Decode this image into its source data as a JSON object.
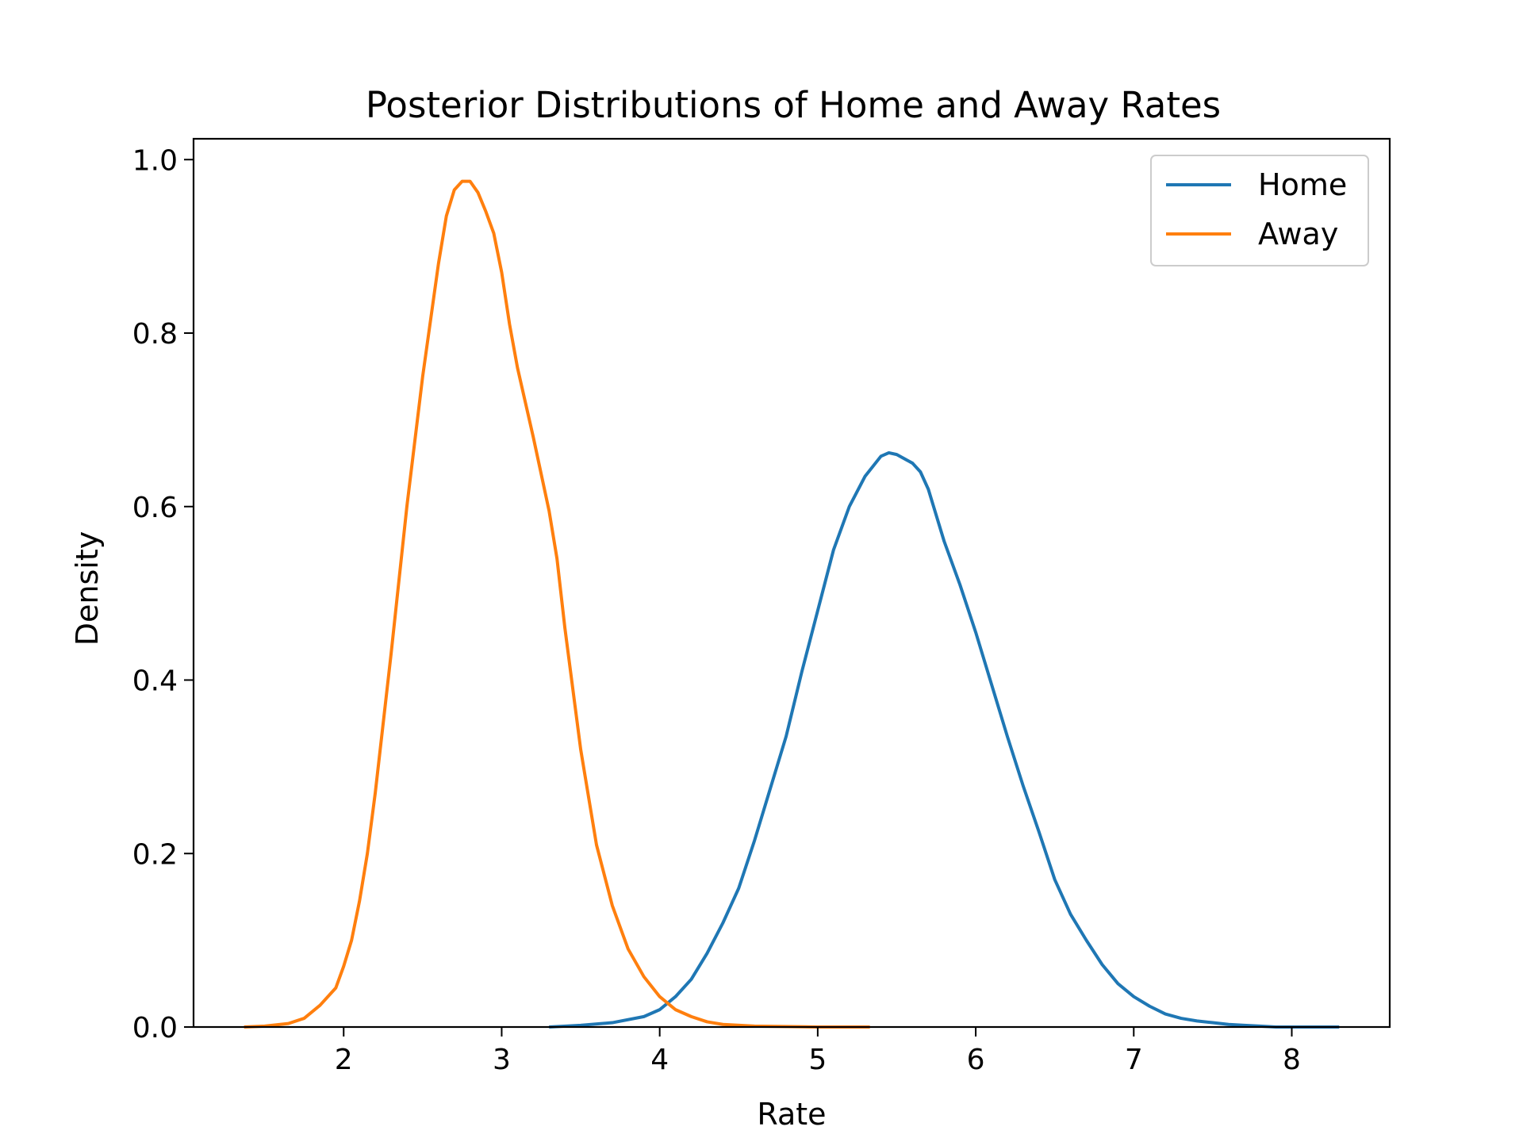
{
  "chart_data": {
    "type": "line",
    "title": "Posterior Distributions of Home and Away Rates",
    "xlabel": "Rate",
    "ylabel": "Density",
    "xlim": [
      1.05,
      8.62
    ],
    "ylim": [
      0.0,
      1.024
    ],
    "x_ticks": [
      "2",
      "3",
      "4",
      "5",
      "6",
      "7",
      "8"
    ],
    "y_ticks": [
      "0.0",
      "0.2",
      "0.4",
      "0.6",
      "0.8",
      "1.0"
    ],
    "grid": false,
    "legend_position": "top-right",
    "series": [
      {
        "name": "Home",
        "color": "#1f77b4",
        "points": [
          [
            3.3,
            0.0
          ],
          [
            3.5,
            0.002
          ],
          [
            3.7,
            0.005
          ],
          [
            3.9,
            0.012
          ],
          [
            4.0,
            0.02
          ],
          [
            4.1,
            0.035
          ],
          [
            4.2,
            0.055
          ],
          [
            4.3,
            0.085
          ],
          [
            4.4,
            0.12
          ],
          [
            4.5,
            0.16
          ],
          [
            4.6,
            0.215
          ],
          [
            4.7,
            0.275
          ],
          [
            4.8,
            0.335
          ],
          [
            4.9,
            0.41
          ],
          [
            5.0,
            0.48
          ],
          [
            5.1,
            0.55
          ],
          [
            5.2,
            0.6
          ],
          [
            5.3,
            0.635
          ],
          [
            5.4,
            0.658
          ],
          [
            5.45,
            0.662
          ],
          [
            5.5,
            0.66
          ],
          [
            5.6,
            0.65
          ],
          [
            5.65,
            0.64
          ],
          [
            5.7,
            0.62
          ],
          [
            5.8,
            0.56
          ],
          [
            5.9,
            0.51
          ],
          [
            6.0,
            0.455
          ],
          [
            6.1,
            0.395
          ],
          [
            6.2,
            0.335
          ],
          [
            6.3,
            0.278
          ],
          [
            6.4,
            0.225
          ],
          [
            6.5,
            0.17
          ],
          [
            6.6,
            0.13
          ],
          [
            6.7,
            0.1
          ],
          [
            6.8,
            0.072
          ],
          [
            6.9,
            0.05
          ],
          [
            7.0,
            0.035
          ],
          [
            7.1,
            0.024
          ],
          [
            7.2,
            0.015
          ],
          [
            7.3,
            0.01
          ],
          [
            7.4,
            0.007
          ],
          [
            7.5,
            0.005
          ],
          [
            7.6,
            0.003
          ],
          [
            7.7,
            0.002
          ],
          [
            7.8,
            0.001
          ],
          [
            7.9,
            0.0
          ],
          [
            8.3,
            0.0
          ]
        ]
      },
      {
        "name": "Away",
        "color": "#ff7f0e",
        "points": [
          [
            1.37,
            0.0
          ],
          [
            1.5,
            0.001
          ],
          [
            1.65,
            0.004
          ],
          [
            1.75,
            0.01
          ],
          [
            1.85,
            0.025
          ],
          [
            1.95,
            0.045
          ],
          [
            2.0,
            0.07
          ],
          [
            2.05,
            0.1
          ],
          [
            2.1,
            0.145
          ],
          [
            2.15,
            0.2
          ],
          [
            2.2,
            0.27
          ],
          [
            2.3,
            0.43
          ],
          [
            2.4,
            0.6
          ],
          [
            2.5,
            0.75
          ],
          [
            2.6,
            0.88
          ],
          [
            2.65,
            0.935
          ],
          [
            2.7,
            0.965
          ],
          [
            2.75,
            0.975
          ],
          [
            2.8,
            0.975
          ],
          [
            2.85,
            0.962
          ],
          [
            2.9,
            0.94
          ],
          [
            2.95,
            0.915
          ],
          [
            3.0,
            0.87
          ],
          [
            3.05,
            0.81
          ],
          [
            3.1,
            0.76
          ],
          [
            3.2,
            0.68
          ],
          [
            3.3,
            0.595
          ],
          [
            3.35,
            0.54
          ],
          [
            3.4,
            0.46
          ],
          [
            3.5,
            0.32
          ],
          [
            3.6,
            0.21
          ],
          [
            3.7,
            0.14
          ],
          [
            3.8,
            0.09
          ],
          [
            3.9,
            0.058
          ],
          [
            4.0,
            0.035
          ],
          [
            4.1,
            0.02
          ],
          [
            4.2,
            0.012
          ],
          [
            4.3,
            0.006
          ],
          [
            4.4,
            0.003
          ],
          [
            4.6,
            0.001
          ],
          [
            5.0,
            0.0
          ],
          [
            5.33,
            0.0
          ]
        ]
      }
    ]
  }
}
